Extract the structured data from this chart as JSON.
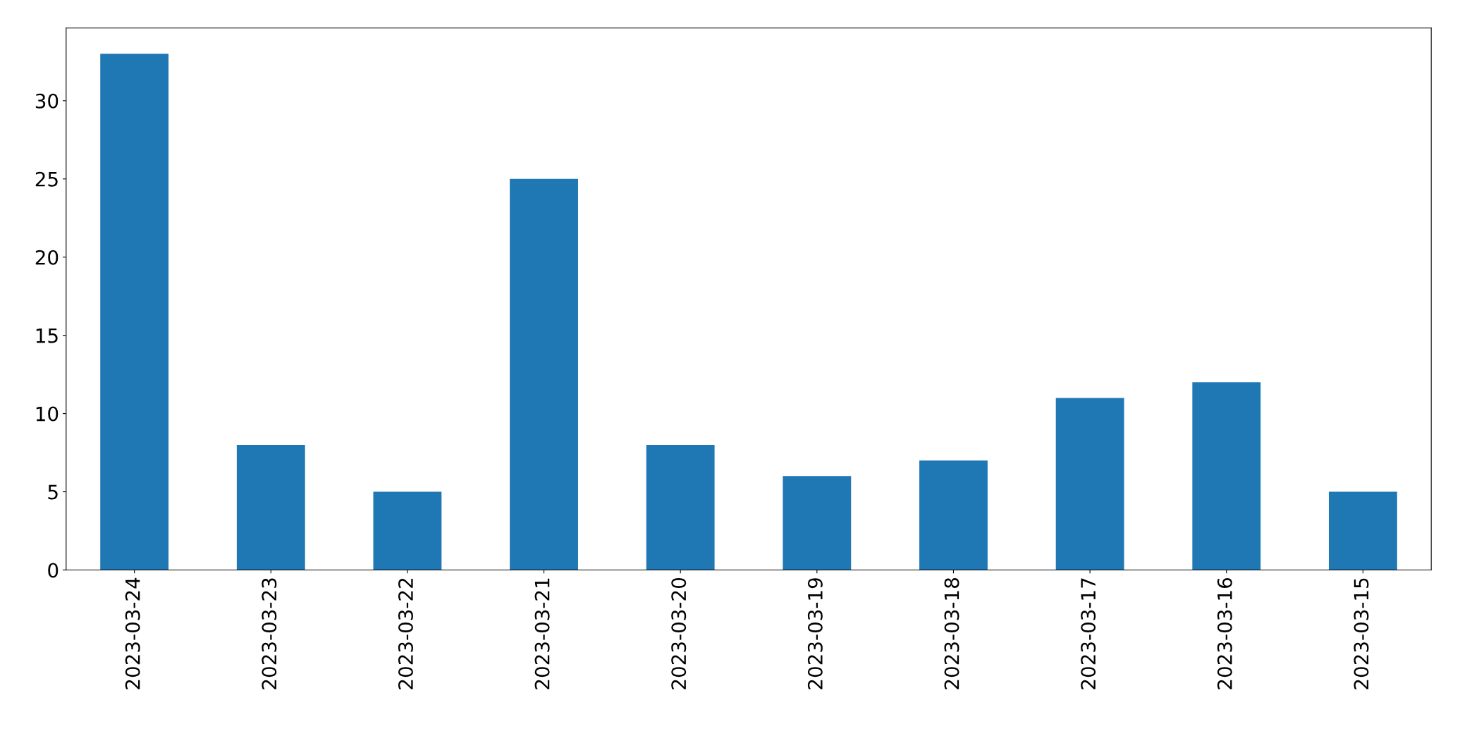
{
  "chart_data": {
    "type": "bar",
    "categories": [
      "2023-03-24",
      "2023-03-23",
      "2023-03-22",
      "2023-03-21",
      "2023-03-20",
      "2023-03-19",
      "2023-03-18",
      "2023-03-17",
      "2023-03-16",
      "2023-03-15"
    ],
    "values": [
      33,
      8,
      5,
      25,
      8,
      6,
      7,
      11,
      12,
      5
    ],
    "color": "#1f77b4",
    "ylim": [
      0,
      34.65
    ],
    "yticks": [
      0,
      5,
      10,
      15,
      20,
      25,
      30
    ],
    "grid": false,
    "legend": false
  }
}
